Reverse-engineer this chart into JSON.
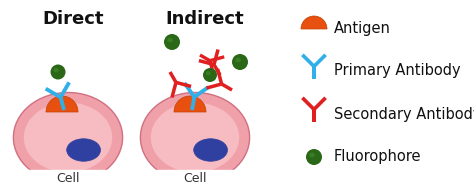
{
  "bg_color": "#ffffff",
  "title_direct": "Direct",
  "title_indirect": "Indirect",
  "cell_label": "Cell",
  "legend_items": [
    "Antigen",
    "Primary Antibody",
    "Secondary Antibody",
    "Fluorophore"
  ],
  "cell_color_inner": "#f9c8cc",
  "cell_color_outer": "#f0a0a8",
  "cell_edge_color": "#d07080",
  "nucleus_color": "#3040a0",
  "nucleus_edge_color": "#2030808",
  "antigen_color": "#e85010",
  "antigen_edge_color": "#c04000",
  "primary_ab_color": "#30b0e8",
  "secondary_ab_color": "#e02020",
  "fluorophore_color": "#2a6818",
  "fluorophore_highlight": "#4a9030",
  "title_fontsize": 13,
  "label_fontsize": 9,
  "legend_fontsize": 11
}
